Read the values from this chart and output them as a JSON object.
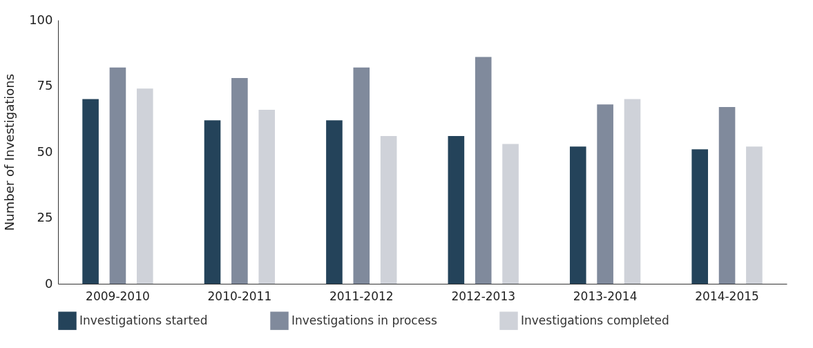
{
  "chart_data": {
    "type": "bar",
    "ylabel": "Number of Investigations",
    "categories": [
      "2009-2010",
      "2010-2011",
      "2011-2012",
      "2012-2013",
      "2013-2014",
      "2014-2015"
    ],
    "series": [
      {
        "name": "Investigations started",
        "color": "#24435a",
        "values": [
          70,
          62,
          62,
          56,
          52,
          51
        ]
      },
      {
        "name": "Investigations in process",
        "color": "#808a9c",
        "values": [
          82,
          78,
          82,
          86,
          68,
          67
        ]
      },
      {
        "name": "Investigations completed",
        "color": "#cfd2d9",
        "values": [
          74,
          66,
          56,
          53,
          70,
          52
        ]
      }
    ],
    "ylim": [
      0,
      100
    ],
    "yticks": [
      0,
      25,
      50,
      75,
      100
    ],
    "grid": false,
    "legend": "bottom"
  }
}
